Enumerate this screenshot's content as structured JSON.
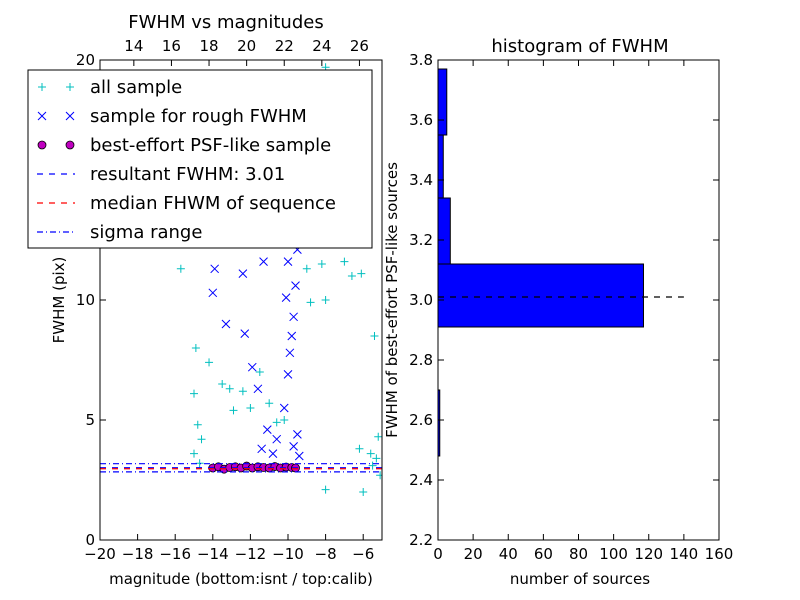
{
  "chart_data": [
    {
      "type": "scatter",
      "title": "FWHM vs magnitudes",
      "xlabel": "magnitude (bottom:isnt / top:calib)",
      "ylabel": "FWHM (pix)",
      "xlim": [
        -20,
        -5
      ],
      "ylim": [
        0,
        20
      ],
      "x_ticks": [
        "−20",
        "−18",
        "−16",
        "−14",
        "−12",
        "−10",
        "−8",
        "−6"
      ],
      "x_tick_values": [
        -20,
        -18,
        -16,
        -14,
        -12,
        -10,
        -8,
        -6
      ],
      "y_ticks": [
        "0",
        "5",
        "10",
        "15",
        "20"
      ],
      "y_tick_values": [
        0,
        5,
        10,
        15,
        20
      ],
      "top_axis": {
        "ticks": [
          "14",
          "16",
          "18",
          "20",
          "22",
          "24",
          "26"
        ],
        "tick_values": [
          14,
          16,
          18,
          20,
          22,
          24,
          26
        ],
        "offset": 32.2
      },
      "grid": false,
      "legend_position": "top-left",
      "legend": [
        {
          "label": "all sample",
          "marker": "+",
          "color": "#00bfbf"
        },
        {
          "label": "sample for rough FWHM",
          "marker": "x",
          "color": "#0000ff"
        },
        {
          "label": "best-effort PSF-like sample",
          "marker": "o",
          "color": "#bf00bf"
        },
        {
          "label": "resultant FWHM: 3.01",
          "linestyle": "dashed",
          "color": "#0000ff"
        },
        {
          "label": "median FHWM of sequence",
          "linestyle": "dashed",
          "color": "#ff0000"
        },
        {
          "label": "sigma range",
          "linestyle": "dashdot",
          "color": "#0000ff"
        }
      ],
      "series": [
        {
          "name": "all sample",
          "points": [
            [
              -15.7,
              11.3
            ],
            [
              -14.6,
              12.4
            ],
            [
              -14.9,
              8.0
            ],
            [
              -15.0,
              6.1
            ],
            [
              -14.8,
              4.8
            ],
            [
              -15.0,
              3.6
            ],
            [
              -14.6,
              4.2
            ],
            [
              -14.7,
              3.2
            ],
            [
              -14.2,
              7.4
            ],
            [
              -13.5,
              6.5
            ],
            [
              -13.1,
              6.3
            ],
            [
              -12.9,
              5.4
            ],
            [
              -12.4,
              6.2
            ],
            [
              -12.0,
              5.5
            ],
            [
              -11.5,
              7.0
            ],
            [
              -11.0,
              5.7
            ],
            [
              -10.6,
              4.9
            ],
            [
              -10.2,
              5.0
            ],
            [
              -9.9,
              18.7
            ],
            [
              -9.5,
              12.8
            ],
            [
              -9.2,
              14.5
            ],
            [
              -9.0,
              11.3
            ],
            [
              -8.8,
              9.9
            ],
            [
              -8.5,
              12.4
            ],
            [
              -8.2,
              11.5
            ],
            [
              -8.0,
              10.0
            ],
            [
              -7.5,
              12.6
            ],
            [
              -7.0,
              11.6
            ],
            [
              -6.6,
              11.0
            ],
            [
              -6.1,
              11.1
            ],
            [
              -5.4,
              8.5
            ],
            [
              -8.0,
              19.7
            ],
            [
              -7.6,
              19.1
            ],
            [
              -7.1,
              18.6
            ],
            [
              -5.1,
              2.7
            ],
            [
              -8.0,
              2.1
            ],
            [
              -6.0,
              2.0
            ],
            [
              -5.5,
              3.1
            ],
            [
              -5.3,
              3.4
            ],
            [
              -5.2,
              4.3
            ],
            [
              -5.6,
              3.6
            ],
            [
              -6.2,
              3.8
            ]
          ],
          "color": "#00bfbf",
          "marker": "+"
        },
        {
          "name": "sample for rough FWHM",
          "points": [
            [
              -13.9,
              11.3
            ],
            [
              -14.0,
              10.3
            ],
            [
              -13.3,
              9.0
            ],
            [
              -12.3,
              8.6
            ],
            [
              -11.9,
              7.2
            ],
            [
              -12.4,
              11.1
            ],
            [
              -11.3,
              11.6
            ],
            [
              -11.6,
              6.3
            ],
            [
              -11.1,
              4.6
            ],
            [
              -11.4,
              3.8
            ],
            [
              -10.8,
              3.6
            ],
            [
              -10.6,
              4.2
            ],
            [
              -10.2,
              5.5
            ],
            [
              -10.0,
              6.9
            ],
            [
              -9.9,
              7.8
            ],
            [
              -9.7,
              9.3
            ],
            [
              -9.6,
              10.6
            ],
            [
              -9.8,
              12.4
            ],
            [
              -9.6,
              13.8
            ],
            [
              -9.5,
              12.1
            ],
            [
              -9.7,
              3.9
            ],
            [
              -9.4,
              3.5
            ],
            [
              -9.5,
              4.4
            ],
            [
              -10.0,
              11.6
            ],
            [
              -9.8,
              8.5
            ],
            [
              -10.1,
              10.1
            ]
          ],
          "color": "#0000ff",
          "marker": "x"
        },
        {
          "name": "best-effort PSF-like sample",
          "points": [
            [
              -14.0,
              3.0
            ],
            [
              -13.7,
              3.05
            ],
            [
              -13.4,
              2.95
            ],
            [
              -13.1,
              3.02
            ],
            [
              -12.8,
              3.05
            ],
            [
              -12.5,
              3.0
            ],
            [
              -12.2,
              3.08
            ],
            [
              -11.9,
              3.0
            ],
            [
              -11.6,
              3.05
            ],
            [
              -11.3,
              3.02
            ],
            [
              -11.0,
              3.0
            ],
            [
              -10.7,
              3.06
            ],
            [
              -10.4,
              3.0
            ],
            [
              -10.1,
              3.04
            ],
            [
              -9.8,
              3.02
            ],
            [
              -9.6,
              3.0
            ]
          ],
          "color": "#bf00bf",
          "marker": "o"
        }
      ],
      "hlines": [
        {
          "name": "resultant FWHM: 3.01",
          "y": 3.01,
          "color": "#0000ff",
          "style": "dashed"
        },
        {
          "name": "median FHWM of sequence",
          "y": 2.97,
          "color": "#ff0000",
          "style": "dashed"
        },
        {
          "name": "sigma range",
          "y": 3.18,
          "color": "#0000ff",
          "style": "dashdot"
        },
        {
          "name": "sigma range",
          "y": 2.84,
          "color": "#0000ff",
          "style": "dashdot"
        }
      ]
    },
    {
      "type": "bar",
      "orientation": "horizontal",
      "title": "histogram of FWHM",
      "xlabel": "number of sources",
      "ylabel": "FWHM of best-effort PSF-like sources",
      "xlim": [
        0,
        160
      ],
      "ylim": [
        2.2,
        3.8
      ],
      "x_ticks": [
        "0",
        "20",
        "40",
        "60",
        "80",
        "100",
        "120",
        "140",
        "160"
      ],
      "x_tick_values": [
        0,
        20,
        40,
        60,
        80,
        100,
        120,
        140,
        160
      ],
      "y_ticks": [
        "2.2",
        "2.4",
        "2.6",
        "2.8",
        "3.0",
        "3.2",
        "3.4",
        "3.6",
        "3.8"
      ],
      "y_tick_values": [
        2.2,
        2.4,
        2.6,
        2.8,
        3.0,
        3.2,
        3.4,
        3.6,
        3.8
      ],
      "grid": false,
      "bars": [
        {
          "bin": [
            2.48,
            2.7
          ],
          "value": 1
        },
        {
          "bin": [
            2.91,
            3.12
          ],
          "value": 117
        },
        {
          "bin": [
            3.12,
            3.34
          ],
          "value": 7
        },
        {
          "bin": [
            3.34,
            3.55
          ],
          "value": 3
        },
        {
          "bin": [
            3.55,
            3.77
          ],
          "value": 5
        }
      ],
      "bar_color": "#0000ff",
      "hline": {
        "y": 3.01,
        "xmax": 140,
        "color": "#000000",
        "style": "dashed"
      }
    }
  ]
}
